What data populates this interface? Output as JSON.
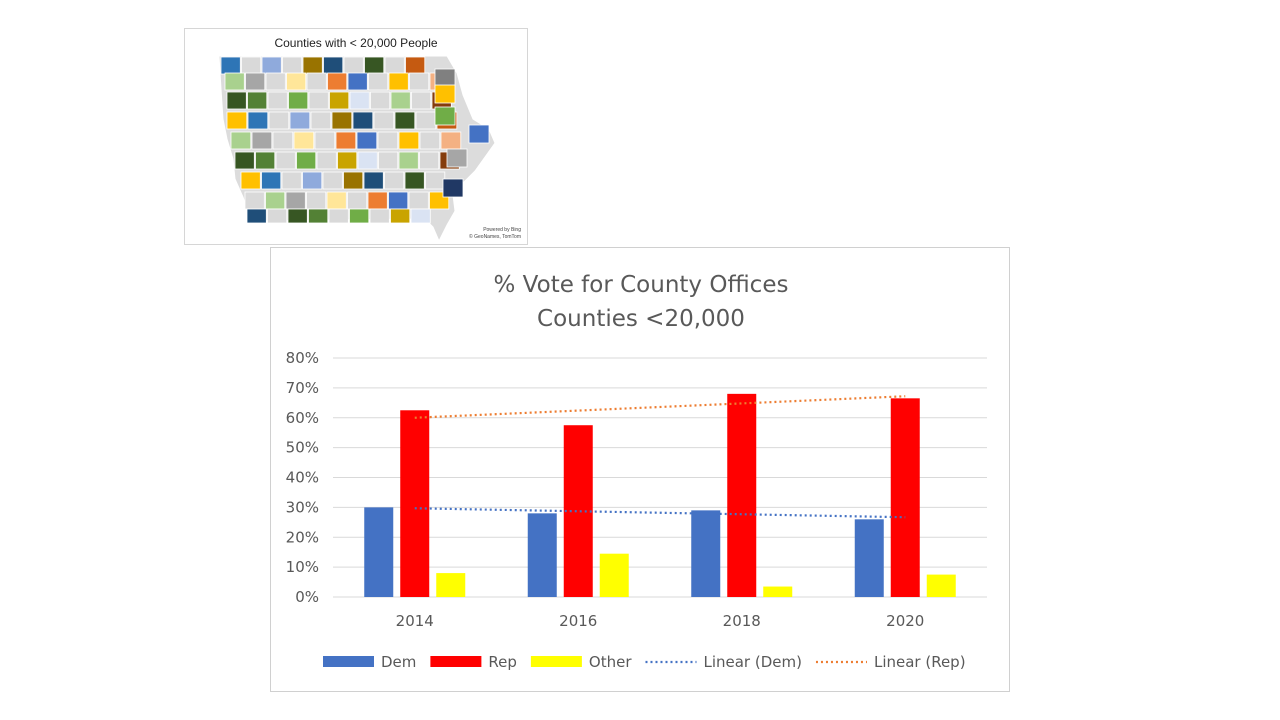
{
  "map": {
    "title": "Counties with < 20,000 People",
    "attribution_line1": "Powered by Bing",
    "attribution_line2": "© GeoNames, TomTom"
  },
  "chart_data": {
    "type": "bar",
    "title": "% Vote for County Offices",
    "subtitle": "Counties <20,000",
    "categories": [
      "2014",
      "2016",
      "2018",
      "2020"
    ],
    "series": [
      {
        "name": "Dem",
        "color": "#4472c4",
        "values": [
          0.3,
          0.28,
          0.29,
          0.26
        ]
      },
      {
        "name": "Rep",
        "color": "#ff0000",
        "values": [
          0.625,
          0.575,
          0.68,
          0.665
        ]
      },
      {
        "name": "Other",
        "color": "#ffff00",
        "values": [
          0.08,
          0.145,
          0.035,
          0.075
        ]
      }
    ],
    "trendlines": [
      {
        "name": "Linear (Dem)",
        "color": "#4472c4",
        "start": 0.297,
        "end": 0.267
      },
      {
        "name": "Linear (Rep)",
        "color": "#ed7d31",
        "start": 0.6,
        "end": 0.672
      }
    ],
    "y_ticks": [
      "0%",
      "10%",
      "20%",
      "30%",
      "40%",
      "50%",
      "60%",
      "70%",
      "80%"
    ],
    "ylim": [
      0,
      0.8
    ],
    "grid": true,
    "legend_position": "bottom"
  }
}
